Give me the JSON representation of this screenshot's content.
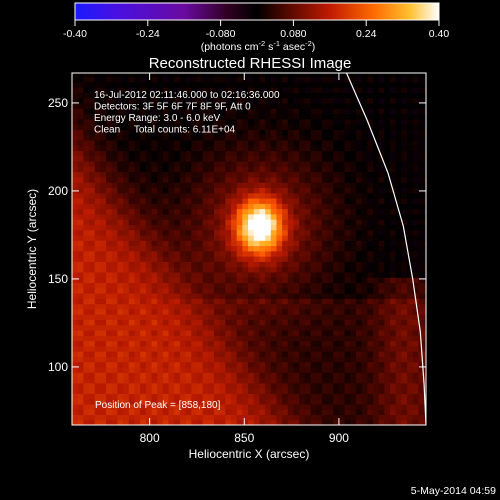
{
  "chart_data": {
    "type": "heatmap",
    "title": "Reconstructed RHESSI Image",
    "xlabel": "Heliocentric X (arcsec)",
    "ylabel": "Heliocentric Y (arcsec)",
    "xlim": [
      759,
      946
    ],
    "ylim": [
      67,
      267
    ],
    "x_ticks": [
      800,
      850,
      900
    ],
    "y_ticks": [
      100,
      150,
      200,
      250
    ],
    "colorbar": {
      "range": [
        -0.4,
        0.4
      ],
      "tick_values": [
        -0.4,
        -0.24,
        -0.08,
        0.08,
        0.24,
        0.4
      ],
      "tick_labels": [
        "-0.40",
        "-0.24",
        "-0.080",
        "0.080",
        "0.24",
        "0.40"
      ],
      "unit_prefix": "(photons cm",
      "unit_exp1": "-2",
      "unit_mid": " s",
      "unit_exp2": "-1",
      "unit_mid2": " asec",
      "unit_exp3": "-2",
      "unit_suffix": ")",
      "colors": [
        "#1a1aff",
        "#5a0ccf",
        "#3a0030",
        "#000000",
        "#5a0800",
        "#b81a00",
        "#ff5a00",
        "#ffb020",
        "#ffffff"
      ]
    },
    "annotations": [
      "16-Jul-2012 02:11:46.000 to 02:16:36.000",
      "Detectors: 3F 5F 6F 7F 8F 9F, Att 0",
      "Energy Range: 3.0 - 6.0 keV",
      "Clean     Total counts: 6.11E+04"
    ],
    "peak_label": "Position of Peak = [858,180]",
    "peak": [
      858,
      180
    ],
    "limb_curve": [
      [
        904,
        267
      ],
      [
        915,
        240
      ],
      [
        926,
        210
      ],
      [
        934,
        180
      ],
      [
        939,
        150
      ],
      [
        943,
        120
      ],
      [
        945,
        90
      ],
      [
        946,
        67
      ]
    ]
  },
  "timestamp": "5-May-2014 04:59"
}
